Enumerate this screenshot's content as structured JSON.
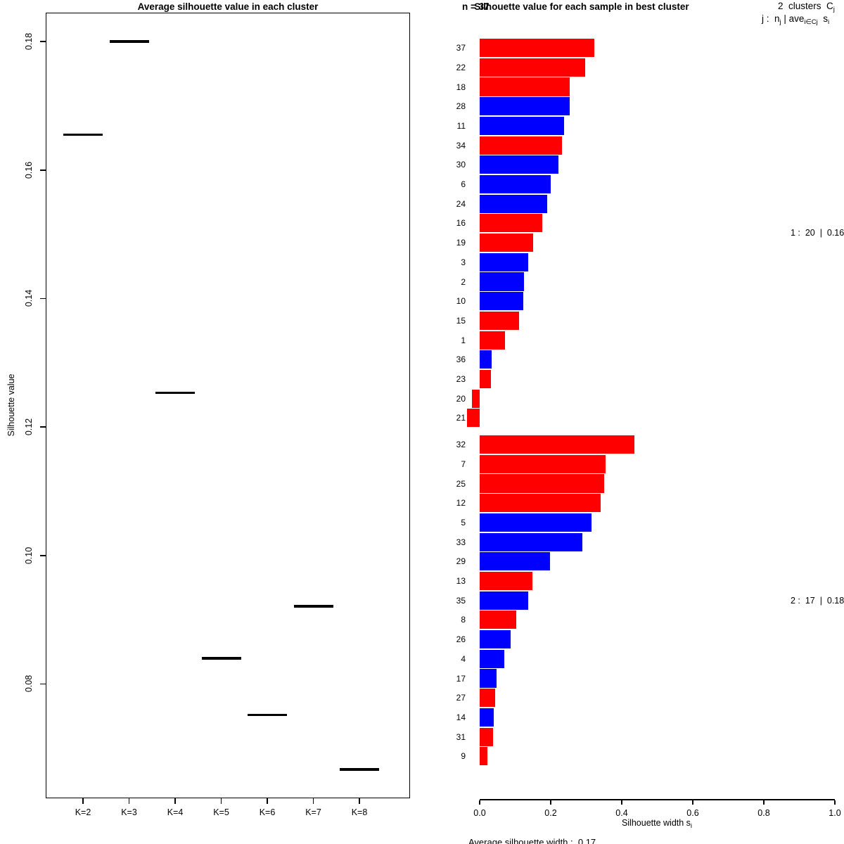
{
  "figure": {
    "background": "#ffffff",
    "foreground": "#000000"
  },
  "chart_data": [
    {
      "type": "scatter",
      "marker": "horizontal-segment",
      "title": "Average silhouette value in each cluster",
      "xlabel": "",
      "ylabel": "Silhouette value",
      "categories": [
        "K=2",
        "K=3",
        "K=4",
        "K=5",
        "K=6",
        "K=7",
        "K=8"
      ],
      "values": [
        0.1655,
        0.18,
        0.1253,
        0.084,
        0.0752,
        0.0921,
        0.0667
      ],
      "ytick_labels": [
        "0.18",
        "0.16",
        "0.14",
        "0.12",
        "0.10",
        "0.08"
      ],
      "yticks": [
        0.18,
        0.16,
        0.14,
        0.12,
        0.1,
        0.08
      ],
      "ylim": [
        0.0622,
        0.1845
      ],
      "grid": false,
      "segment_color": "#000000"
    },
    {
      "type": "bar",
      "orientation": "horizontal",
      "title": "Silhouette value for each sample in best cluster",
      "n_label": "n = 37",
      "legend_lines": [
        {
          "parts": [
            {
              "t": "2  clusters  C"
            },
            {
              "t": "j",
              "sub": true
            }
          ]
        },
        {
          "parts": [
            {
              "t": "j :  n"
            },
            {
              "t": "j",
              "sub": true
            },
            {
              "t": " | ave"
            },
            {
              "t": "i∈Cj",
              "sub": true
            },
            {
              "t": "  s"
            },
            {
              "t": "i",
              "sub": true
            }
          ]
        }
      ],
      "xlabel_parts": [
        {
          "t": "Silhouette width s"
        },
        {
          "t": "i",
          "sub": true
        }
      ],
      "xtick_labels": [
        "0.0",
        "0.2",
        "0.4",
        "0.6",
        "0.8",
        "1.0"
      ],
      "xticks": [
        0.0,
        0.2,
        0.4,
        0.6,
        0.8,
        1.0
      ],
      "xlim": [
        0.0,
        1.0
      ],
      "grid": false,
      "bar_colors": {
        "red": "#FF0000",
        "blue": "#0000FF"
      },
      "clusters": [
        {
          "label": "1 :  20  |  0.16",
          "samples": [
            {
              "id": "37",
              "value": 0.322,
              "color": "red"
            },
            {
              "id": "22",
              "value": 0.297,
              "color": "red"
            },
            {
              "id": "18",
              "value": 0.253,
              "color": "red"
            },
            {
              "id": "28",
              "value": 0.253,
              "color": "blue"
            },
            {
              "id": "11",
              "value": 0.238,
              "color": "blue"
            },
            {
              "id": "34",
              "value": 0.232,
              "color": "red"
            },
            {
              "id": "30",
              "value": 0.222,
              "color": "blue"
            },
            {
              "id": "6",
              "value": 0.2,
              "color": "blue"
            },
            {
              "id": "24",
              "value": 0.19,
              "color": "blue"
            },
            {
              "id": "16",
              "value": 0.176,
              "color": "red"
            },
            {
              "id": "19",
              "value": 0.15,
              "color": "red"
            },
            {
              "id": "3",
              "value": 0.137,
              "color": "blue"
            },
            {
              "id": "2",
              "value": 0.125,
              "color": "blue"
            },
            {
              "id": "10",
              "value": 0.123,
              "color": "blue"
            },
            {
              "id": "15",
              "value": 0.111,
              "color": "red"
            },
            {
              "id": "1",
              "value": 0.071,
              "color": "red"
            },
            {
              "id": "36",
              "value": 0.034,
              "color": "blue"
            },
            {
              "id": "23",
              "value": 0.032,
              "color": "red"
            },
            {
              "id": "20",
              "value": -0.021,
              "color": "red"
            },
            {
              "id": "21",
              "value": -0.035,
              "color": "red"
            }
          ]
        },
        {
          "label": "2 :  17  |  0.18",
          "samples": [
            {
              "id": "32",
              "value": 0.436,
              "color": "red"
            },
            {
              "id": "7",
              "value": 0.354,
              "color": "red"
            },
            {
              "id": "25",
              "value": 0.35,
              "color": "red"
            },
            {
              "id": "12",
              "value": 0.341,
              "color": "red"
            },
            {
              "id": "5",
              "value": 0.315,
              "color": "blue"
            },
            {
              "id": "33",
              "value": 0.289,
              "color": "blue"
            },
            {
              "id": "29",
              "value": 0.198,
              "color": "blue"
            },
            {
              "id": "13",
              "value": 0.149,
              "color": "red"
            },
            {
              "id": "35",
              "value": 0.137,
              "color": "blue"
            },
            {
              "id": "8",
              "value": 0.103,
              "color": "red"
            },
            {
              "id": "26",
              "value": 0.087,
              "color": "blue"
            },
            {
              "id": "4",
              "value": 0.07,
              "color": "blue"
            },
            {
              "id": "17",
              "value": 0.048,
              "color": "blue"
            },
            {
              "id": "27",
              "value": 0.044,
              "color": "red"
            },
            {
              "id": "14",
              "value": 0.04,
              "color": "blue"
            },
            {
              "id": "31",
              "value": 0.038,
              "color": "red"
            },
            {
              "id": "9",
              "value": 0.021,
              "color": "red"
            }
          ]
        }
      ],
      "footer": "Average silhouette width :  0.17"
    }
  ]
}
